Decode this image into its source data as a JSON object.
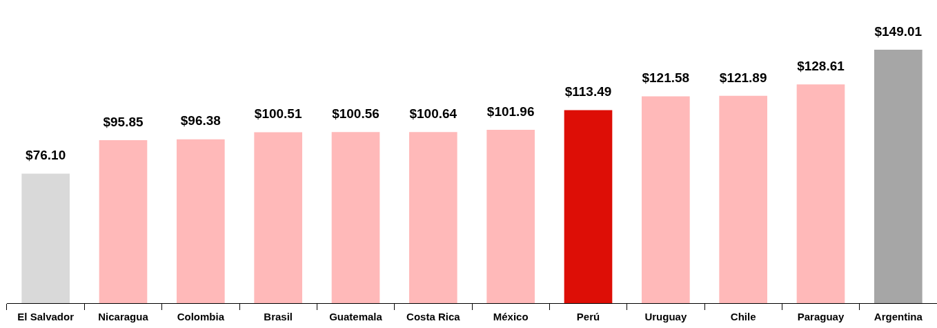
{
  "chart_data": {
    "type": "bar",
    "categories": [
      "El Salvador",
      "Nicaragua",
      "Colombia",
      "Brasil",
      "Guatemala",
      "Costa Rica",
      "México",
      "Perú",
      "Uruguay",
      "Chile",
      "Paraguay",
      "Argentina"
    ],
    "values": [
      76.1,
      95.85,
      96.38,
      100.51,
      100.56,
      100.64,
      101.96,
      113.49,
      121.58,
      121.89,
      128.61,
      149.01
    ],
    "colors": [
      "#d9d9d9",
      "#ffb9b9",
      "#ffb9b9",
      "#ffb9b9",
      "#ffb9b9",
      "#ffb9b9",
      "#ffb9b9",
      "#dd0e06",
      "#ffb9b9",
      "#ffb9b9",
      "#ffb9b9",
      "#a6a6a6"
    ],
    "value_labels": [
      "$76.10",
      "$95.85",
      "$96.38",
      "$100.51",
      "$100.56",
      "$100.64",
      "$101.96",
      "$113.49",
      "$121.58",
      "$121.89",
      "$128.61",
      "$149.01"
    ],
    "grid": false,
    "legend": false,
    "tick_labels": "x"
  }
}
